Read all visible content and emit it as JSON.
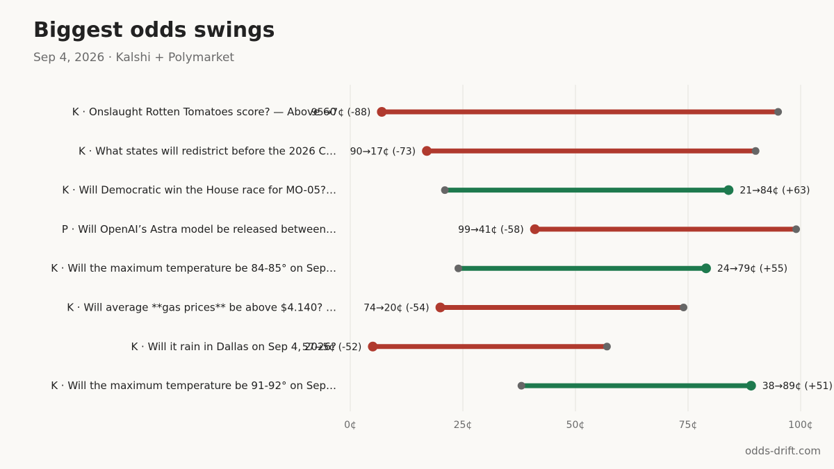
{
  "header": {
    "title": "Biggest odds swings",
    "subtitle": "Sep 4, 2026 · Kalshi + Polymarket"
  },
  "footer": {
    "credit": "odds-drift.com"
  },
  "colors": {
    "background": "#faf9f6",
    "down": "#b03a2e",
    "up": "#1e7a4e",
    "start_marker": "#666666",
    "grid": "#e4e2dc",
    "text": "#222222",
    "muted": "#6b6b6b"
  },
  "chart_data": {
    "type": "dumbbell",
    "title": "Biggest odds swings",
    "subtitle": "Sep 4, 2026 · Kalshi + Polymarket",
    "xlabel": "",
    "ylabel": "",
    "xlim": [
      0,
      100
    ],
    "x_ticks": [
      0,
      25,
      50,
      75,
      100
    ],
    "x_tick_labels": [
      "0¢",
      "25¢",
      "50¢",
      "75¢",
      "100¢"
    ],
    "grid": "vertical",
    "rows": [
      {
        "label": "K · Onslaught Rotten Tomatoes score? — Above 60",
        "from": 95,
        "to": 7,
        "change": -88,
        "annotation": "95→7¢ (-88)"
      },
      {
        "label": "K · What states will redistrict before the 2026 C…",
        "from": 90,
        "to": 17,
        "change": -73,
        "annotation": "90→17¢ (-73)"
      },
      {
        "label": "K · Will Democratic win the House race for MO-05?…",
        "from": 21,
        "to": 84,
        "change": 63,
        "annotation": "21→84¢ (+63)"
      },
      {
        "label": "P · Will OpenAI’s Astra model be released between…",
        "from": 99,
        "to": 41,
        "change": -58,
        "annotation": "99→41¢ (-58)"
      },
      {
        "label": "K · Will the maximum temperature be 84-85° on Sep…",
        "from": 24,
        "to": 79,
        "change": 55,
        "annotation": "24→79¢ (+55)"
      },
      {
        "label": "K · Will average **gas prices** be above $4.140? …",
        "from": 74,
        "to": 20,
        "change": -54,
        "annotation": "74→20¢ (-54)"
      },
      {
        "label": "K · Will it rain in Dallas on Sep 4, 2026?",
        "from": 57,
        "to": 5,
        "change": -52,
        "annotation": "57→5¢ (-52)"
      },
      {
        "label": "K · Will the maximum temperature be 91-92° on Sep…",
        "from": 38,
        "to": 89,
        "change": 51,
        "annotation": "38→89¢ (+51)"
      }
    ]
  }
}
